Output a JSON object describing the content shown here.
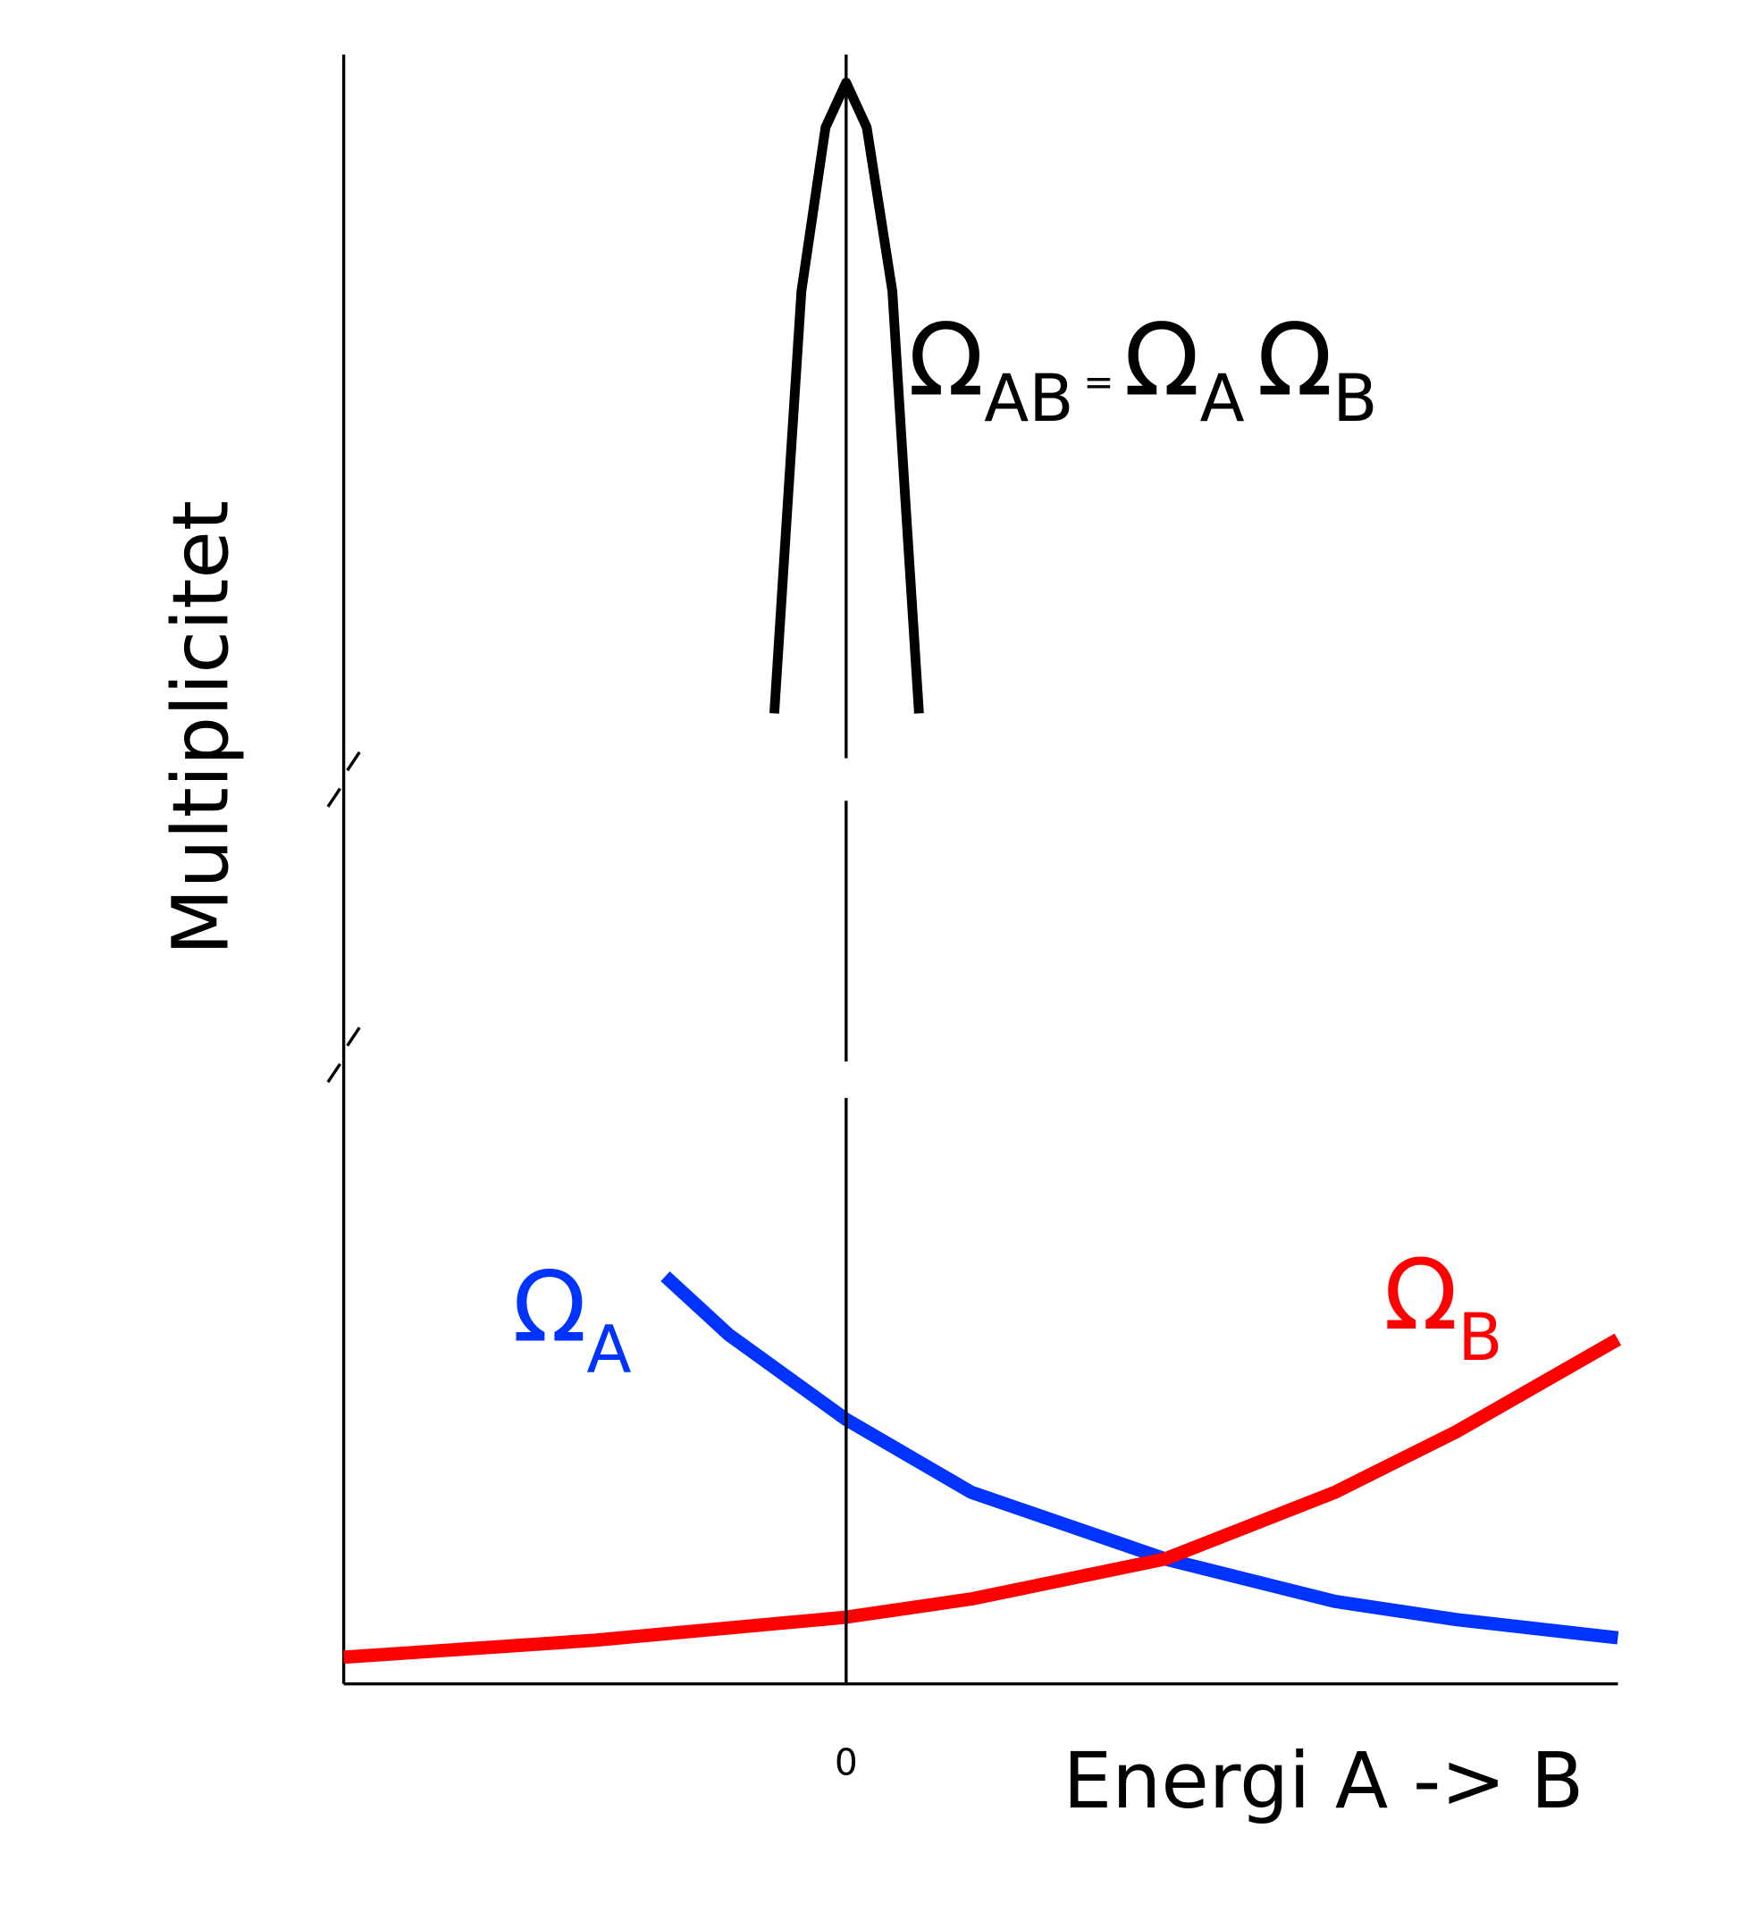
{
  "chart_data": [
    {
      "type": "line",
      "annotation": [
        "Ω",
        "AB",
        "=",
        "Ω",
        "A",
        "Ω",
        "B"
      ],
      "xlim": [
        -1,
        1.536
      ],
      "ylim": [
        0,
        5.85
      ],
      "series": [
        {
          "color": "#000000",
          "x": [
            -0.143,
            -0.114,
            -0.089,
            -0.041,
            0,
            0.041,
            0.092,
            0.116,
            0.145
          ],
          "values": [
            0.42,
            2.3,
            3.9,
            5.25,
            5.62,
            5.25,
            3.9,
            2.3,
            0.42
          ]
        }
      ]
    },
    {
      "type": "line",
      "x_label": "Energi A -> B",
      "y_label": "Multiplicitet",
      "xlim": [
        -1,
        1.536
      ],
      "ylim": [
        0,
        4.83
      ],
      "xticks": [
        0
      ],
      "series": [
        {
          "name": "Ω",
          "subscript": "A",
          "color": "#0033ff",
          "x": [
            -0.36,
            -0.234,
            0,
            0.249,
            0.635,
            0.973,
            1.215,
            1.536
          ],
          "values": [
            3.36,
            2.88,
            2.18,
            1.58,
            1.03,
            0.68,
            0.53,
            0.38
          ]
        },
        {
          "name": "Ω",
          "subscript": "B",
          "color": "#ff0000",
          "x": [
            -1,
            -0.5,
            0,
            0.249,
            0.635,
            0.973,
            1.215,
            1.536
          ],
          "values": [
            0.22,
            0.36,
            0.55,
            0.7,
            1.03,
            1.58,
            2.08,
            2.84
          ]
        }
      ]
    }
  ]
}
